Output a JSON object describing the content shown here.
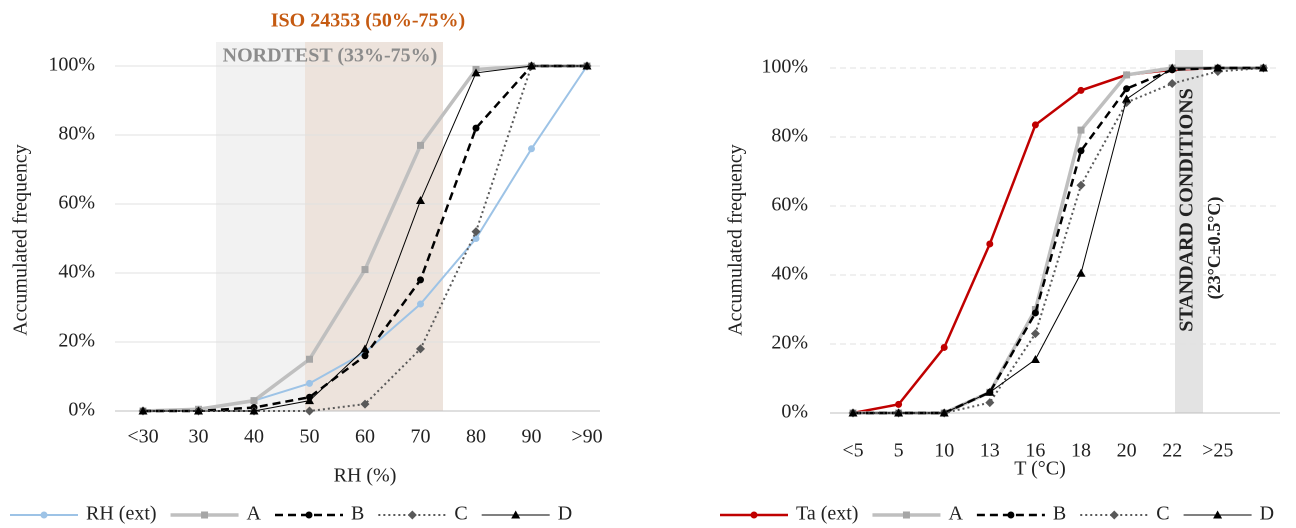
{
  "chart_data": [
    {
      "type": "line",
      "x_label": "RH (%)",
      "y_label": "Accumulated frequency",
      "annotations": [
        "ISO 24353 (50%-75%)",
        "NORDTEST (33%-75%)"
      ],
      "categories": [
        "<30",
        "30",
        "40",
        "50",
        "60",
        "70",
        "80",
        "90",
        ">90"
      ],
      "ylim": [
        0,
        100
      ],
      "yticks": [
        {
          "value": 0,
          "label": "0%"
        },
        {
          "value": 20,
          "label": "20%"
        },
        {
          "value": 40,
          "label": "40%"
        },
        {
          "value": 60,
          "label": "60%"
        },
        {
          "value": 80,
          "label": "80%"
        },
        {
          "value": 100,
          "label": "100%"
        }
      ],
      "grid": "solid",
      "series": [
        {
          "name": "RH (ext)",
          "color": "#9dc3e6",
          "width": 2,
          "dash": "solid",
          "marker": "circle",
          "values": [
            0,
            0.5,
            3,
            8,
            17,
            31,
            50,
            76,
            100
          ]
        },
        {
          "name": "A",
          "color": "#bfbfbf",
          "width": 3.5,
          "dash": "solid",
          "marker": "square",
          "values": [
            0,
            0.5,
            3,
            15,
            41,
            77,
            99,
            100,
            100
          ]
        },
        {
          "name": "B",
          "color": "#000000",
          "width": 2.5,
          "dash": "dashed",
          "marker": "circle",
          "values": [
            0,
            0,
            1,
            4,
            16,
            38,
            82,
            100,
            100
          ]
        },
        {
          "name": "C",
          "color": "#595959",
          "width": 2,
          "dash": "dotted",
          "marker": "diamond",
          "values": [
            0,
            0,
            0,
            0,
            2,
            18,
            52,
            100,
            100
          ]
        },
        {
          "name": "D",
          "color": "#000000",
          "width": 1,
          "dash": "solid",
          "marker": "triangle",
          "values": [
            0,
            0,
            0,
            3,
            18,
            61,
            98,
            100,
            100
          ]
        }
      ]
    },
    {
      "type": "line",
      "x_label": "T (°C)",
      "y_label": "Accumulated frequency",
      "annotations": [
        "STANDARD CONDITIONS",
        "(23°C±0.5°C)"
      ],
      "categories": [
        "<5",
        "5",
        "10",
        "13",
        "16",
        "18",
        "20",
        "22",
        ">25",
        null
      ],
      "ylim": [
        0,
        100
      ],
      "yticks": [
        {
          "value": 0,
          "label": "0%"
        },
        {
          "value": 20,
          "label": "20%"
        },
        {
          "value": 40,
          "label": "40%"
        },
        {
          "value": 60,
          "label": "60%"
        },
        {
          "value": 80,
          "label": "80%"
        },
        {
          "value": 100,
          "label": "100%"
        }
      ],
      "grid": "dashed",
      "series": [
        {
          "name": "Ta (ext)",
          "color": "#c00000",
          "width": 2.5,
          "dash": "solid",
          "marker": "circle",
          "values": [
            0,
            2.5,
            19,
            49,
            83.5,
            93.5,
            98,
            99.5,
            100,
            100
          ]
        },
        {
          "name": "A",
          "color": "#bfbfbf",
          "width": 3.5,
          "dash": "solid",
          "marker": "square",
          "values": [
            0,
            0,
            0,
            6,
            30,
            82,
            98,
            100,
            100,
            100
          ]
        },
        {
          "name": "B",
          "color": "#000000",
          "width": 2.5,
          "dash": "dashed",
          "marker": "circle",
          "values": [
            0,
            0,
            0,
            6,
            29,
            76,
            94,
            99.5,
            100,
            100
          ]
        },
        {
          "name": "C",
          "color": "#595959",
          "width": 2,
          "dash": "dotted",
          "marker": "diamond",
          "values": [
            0,
            0,
            0,
            3,
            23,
            66,
            90,
            95.5,
            99,
            100
          ]
        },
        {
          "name": "D",
          "color": "#000000",
          "width": 1,
          "dash": "solid",
          "marker": "triangle",
          "values": [
            0,
            0,
            0,
            6,
            15.5,
            40.5,
            91,
            100,
            100,
            100
          ]
        }
      ]
    }
  ]
}
